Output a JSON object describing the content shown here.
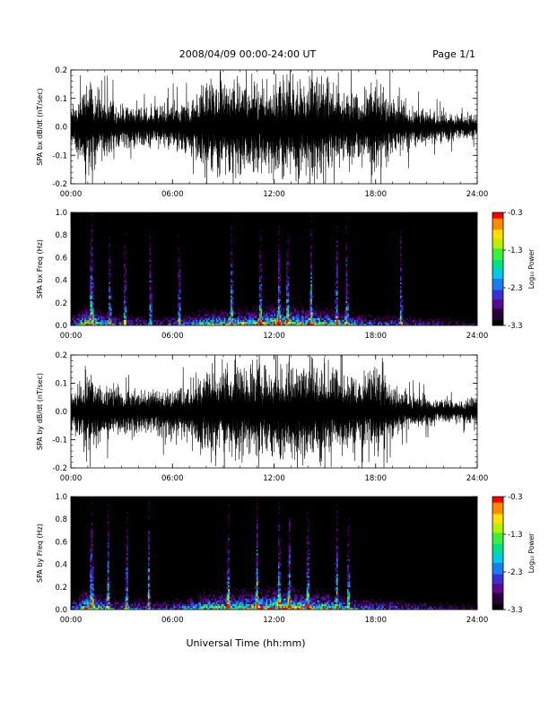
{
  "header": {
    "title": "2008/04/09  00:00-24:00 UT",
    "page_label": "Page 1/1"
  },
  "colors": {
    "trace": "#000000",
    "spectrogram_background": "#000000",
    "colormap": [
      "#000000",
      "#2a0038",
      "#5a0a8c",
      "#3b2fd6",
      "#1a7cf0",
      "#00c8e6",
      "#00e08a",
      "#3ef03a",
      "#b8f000",
      "#ffe000",
      "#ff8a00",
      "#ff0000"
    ]
  },
  "chart_data": [
    {
      "type": "line",
      "title": "",
      "xlabel": "",
      "ylabel": "SPA bx dB/dt (nT/sec)",
      "xlim": [
        0,
        24
      ],
      "ylim": [
        -0.2,
        0.2
      ],
      "xticks": [
        "00:00",
        "06:00",
        "12:00",
        "18:00",
        "24:00"
      ],
      "yticks": [
        "-0.2",
        "-0.1",
        "0.0",
        "0.1",
        "0.2"
      ],
      "series": [
        {
          "x": [
            0,
            1,
            2,
            3,
            4,
            5,
            6,
            7,
            7.5,
            8,
            9,
            10,
            11,
            12,
            13,
            14,
            15,
            15.5,
            16,
            17,
            18,
            19,
            20,
            21,
            22,
            23,
            24
          ],
          "envelope": [
            0.08,
            0.2,
            0.12,
            0.09,
            0.1,
            0.08,
            0.1,
            0.12,
            0.15,
            0.2,
            0.2,
            0.2,
            0.2,
            0.2,
            0.2,
            0.2,
            0.2,
            0.2,
            0.16,
            0.13,
            0.2,
            0.12,
            0.1,
            0.07,
            0.06,
            0.05,
            0.06
          ]
        }
      ]
    },
    {
      "type": "heatmap",
      "title": "",
      "xlabel": "",
      "ylabel": "SPA bx Freq (Hz)",
      "xlim": [
        0,
        24
      ],
      "ylim": [
        0,
        1
      ],
      "xticks": [
        "00:00",
        "06:00",
        "12:00",
        "18:00",
        "24:00"
      ],
      "yticks": [
        "0.0",
        "0.2",
        "0.4",
        "0.6",
        "0.8",
        "1.0"
      ],
      "colorbar": {
        "label": "Log₁₀ Power",
        "range": [
          -3.3,
          -0.3
        ],
        "ticks": [
          "-0.3",
          "-1.3",
          "-2.3",
          "-3.3"
        ]
      },
      "activity_x": [
        0,
        1,
        2,
        3,
        4,
        5,
        6,
        7,
        8,
        9,
        10,
        11,
        12,
        13,
        14,
        15,
        16,
        17,
        18,
        19,
        20,
        21,
        22,
        23,
        24
      ],
      "activity": [
        0.3,
        0.75,
        0.45,
        0.35,
        0.35,
        0.3,
        0.35,
        0.4,
        0.55,
        0.6,
        0.62,
        0.65,
        0.8,
        0.7,
        0.65,
        0.6,
        0.5,
        0.4,
        0.35,
        0.35,
        0.3,
        0.28,
        0.25,
        0.22,
        0.2
      ],
      "bursts_ut": [
        1.2,
        1.25,
        2.3,
        3.2,
        4.7,
        6.4,
        9.5,
        11.2,
        12.3,
        12.8,
        14.2,
        15.7,
        16.3,
        19.5
      ]
    },
    {
      "type": "line",
      "title": "",
      "xlabel": "",
      "ylabel": "SPA by dB/dt (nT/sec)",
      "xlim": [
        0,
        24
      ],
      "ylim": [
        -0.2,
        0.2
      ],
      "xticks": [
        "00:00",
        "06:00",
        "12:00",
        "18:00",
        "24:00"
      ],
      "yticks": [
        "-0.2",
        "-0.1",
        "0.0",
        "0.1",
        "0.2"
      ],
      "series": [
        {
          "x": [
            0,
            1,
            2,
            3,
            4,
            5,
            6,
            7,
            7.5,
            8,
            9,
            10,
            11,
            12,
            13,
            14,
            15,
            15.5,
            16,
            17,
            18,
            19,
            20,
            21,
            22,
            23,
            24
          ],
          "envelope": [
            0.07,
            0.2,
            0.12,
            0.1,
            0.1,
            0.1,
            0.11,
            0.14,
            0.17,
            0.2,
            0.2,
            0.2,
            0.2,
            0.2,
            0.2,
            0.2,
            0.2,
            0.2,
            0.17,
            0.14,
            0.2,
            0.1,
            0.08,
            0.06,
            0.05,
            0.05,
            0.06
          ]
        }
      ]
    },
    {
      "type": "heatmap",
      "title": "",
      "xlabel": "Universal Time (hh:mm)",
      "ylabel": "SPA by Freq (Hz)",
      "xlim": [
        0,
        24
      ],
      "ylim": [
        0,
        1
      ],
      "xticks": [
        "00:00",
        "06:00",
        "12:00",
        "18:00",
        "24:00"
      ],
      "yticks": [
        "0.0",
        "0.2",
        "0.4",
        "0.6",
        "0.8",
        "1.0"
      ],
      "colorbar": {
        "label": "Log₁₀ Power",
        "range": [
          -3.3,
          -0.3
        ],
        "ticks": [
          "-0.3",
          "-1.3",
          "-2.3",
          "-3.3"
        ]
      },
      "activity_x": [
        0,
        1,
        2,
        3,
        4,
        5,
        6,
        7,
        8,
        9,
        10,
        11,
        12,
        13,
        14,
        15,
        16,
        17,
        18,
        19,
        20,
        21,
        22,
        23,
        24
      ],
      "activity": [
        0.3,
        0.75,
        0.45,
        0.35,
        0.35,
        0.3,
        0.35,
        0.45,
        0.6,
        0.65,
        0.65,
        0.7,
        0.85,
        0.75,
        0.7,
        0.65,
        0.5,
        0.4,
        0.35,
        0.35,
        0.3,
        0.28,
        0.25,
        0.22,
        0.2
      ],
      "bursts_ut": [
        1.2,
        1.25,
        2.2,
        3.3,
        4.6,
        9.3,
        11.0,
        12.3,
        12.9,
        14.0,
        15.7,
        16.4
      ]
    }
  ]
}
